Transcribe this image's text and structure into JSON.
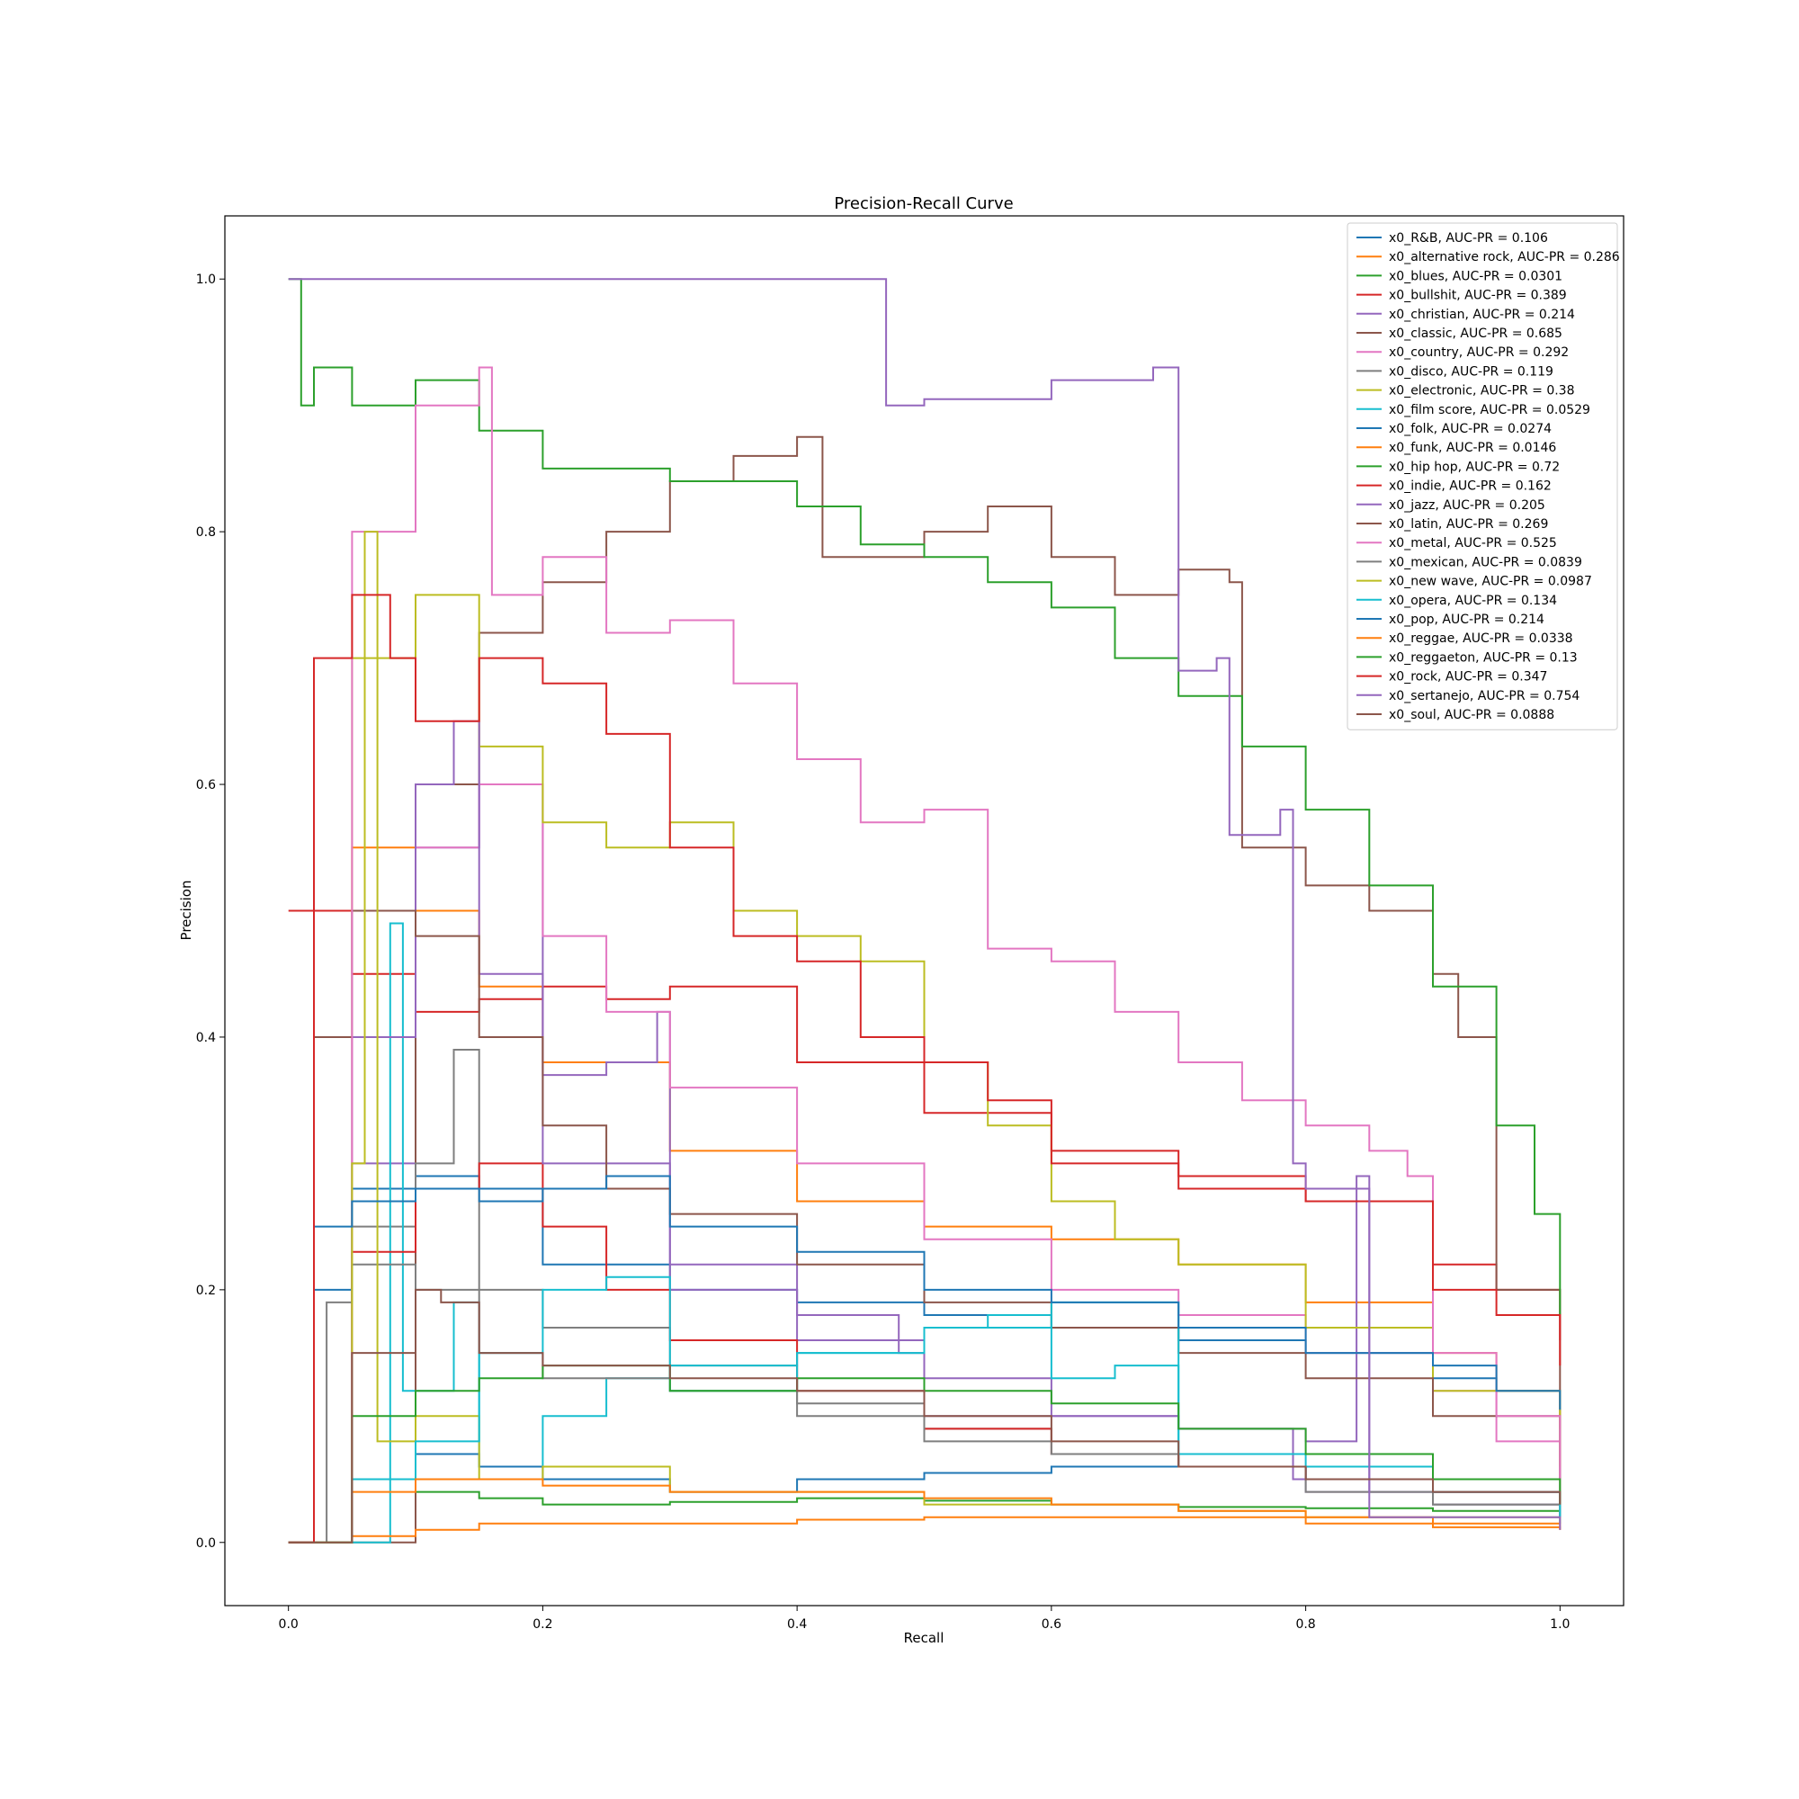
{
  "chart_data": {
    "type": "line",
    "title": "Precision-Recall Curve",
    "xlabel": "Recall",
    "ylabel": "Precision",
    "xlim": [
      -0.05,
      1.05
    ],
    "ylim": [
      -0.05,
      1.05
    ],
    "xticks": [
      0.0,
      0.2,
      0.4,
      0.6,
      0.8,
      1.0
    ],
    "xtick_labels": [
      "0.0",
      "0.2",
      "0.4",
      "0.6",
      "0.8",
      "1.0"
    ],
    "yticks": [
      0.0,
      0.2,
      0.4,
      0.6,
      0.8,
      1.0
    ],
    "ytick_labels": [
      "0.0",
      "0.2",
      "0.4",
      "0.6",
      "0.8",
      "1.0"
    ],
    "grid": false,
    "legend_position": "top-right",
    "step": true,
    "series": [
      {
        "name": "x0_R&B, AUC-PR = 0.106",
        "color": "#1f77b4",
        "x": [
          0,
          0.02,
          0.05,
          0.1,
          0.15,
          0.2,
          0.3,
          0.4,
          0.5,
          0.6,
          0.7,
          0.8,
          0.9,
          0.95,
          1.0
        ],
        "y": [
          0.0,
          0.2,
          0.28,
          0.29,
          0.28,
          0.22,
          0.2,
          0.19,
          0.18,
          0.17,
          0.16,
          0.15,
          0.13,
          0.12,
          0.106
        ]
      },
      {
        "name": "x0_alternative rock, AUC-PR = 0.286",
        "color": "#ff7f0e",
        "x": [
          0,
          0.02,
          0.05,
          0.1,
          0.15,
          0.2,
          0.3,
          0.4,
          0.5,
          0.6,
          0.7,
          0.8,
          0.9,
          0.95,
          1.0
        ],
        "y": [
          0.0,
          0.5,
          0.55,
          0.5,
          0.44,
          0.38,
          0.31,
          0.27,
          0.25,
          0.24,
          0.22,
          0.19,
          0.15,
          0.12,
          0.09
        ]
      },
      {
        "name": "x0_blues, AUC-PR = 0.0301",
        "color": "#2ca02c",
        "x": [
          0,
          0.05,
          0.1,
          0.15,
          0.2,
          0.3,
          0.4,
          0.5,
          0.6,
          0.7,
          0.8,
          0.9,
          1.0
        ],
        "y": [
          0.0,
          0.05,
          0.04,
          0.035,
          0.03,
          0.032,
          0.035,
          0.033,
          0.03,
          0.028,
          0.027,
          0.025,
          0.02
        ]
      },
      {
        "name": "x0_bullshit, AUC-PR = 0.389",
        "color": "#d62728",
        "x": [
          0,
          0.01,
          0.05,
          0.1,
          0.15,
          0.2,
          0.25,
          0.3,
          0.4,
          0.5,
          0.6,
          0.7,
          0.8,
          0.9,
          0.95,
          1.0
        ],
        "y": [
          0.5,
          0.5,
          0.45,
          0.42,
          0.43,
          0.44,
          0.43,
          0.44,
          0.38,
          0.34,
          0.31,
          0.29,
          0.27,
          0.22,
          0.2,
          0.16
        ]
      },
      {
        "name": "x0_christian, AUC-PR = 0.214",
        "color": "#9467bd",
        "x": [
          0,
          0.05,
          0.1,
          0.15,
          0.2,
          0.25,
          0.29,
          0.3,
          0.4,
          0.5,
          0.6,
          0.7,
          0.8,
          0.84,
          0.85,
          1.0
        ],
        "y": [
          0.0,
          0.3,
          0.55,
          0.6,
          0.37,
          0.38,
          0.42,
          0.2,
          0.16,
          0.13,
          0.1,
          0.09,
          0.08,
          0.28,
          0.04,
          0.03
        ]
      },
      {
        "name": "x0_classic, AUC-PR = 0.685",
        "color": "#8c564b",
        "x": [
          0,
          0.1,
          0.15,
          0.2,
          0.25,
          0.3,
          0.35,
          0.4,
          0.42,
          0.5,
          0.55,
          0.6,
          0.65,
          0.7,
          0.74,
          0.75,
          0.8,
          0.85,
          0.9,
          0.92,
          0.95,
          1.0
        ],
        "y": [
          0.0,
          0.6,
          0.72,
          0.76,
          0.8,
          0.84,
          0.86,
          0.875,
          0.78,
          0.8,
          0.82,
          0.78,
          0.75,
          0.77,
          0.76,
          0.55,
          0.52,
          0.5,
          0.45,
          0.4,
          0.2,
          0.05
        ]
      },
      {
        "name": "x0_country, AUC-PR = 0.292",
        "color": "#e377c2",
        "x": [
          0,
          0.05,
          0.1,
          0.15,
          0.2,
          0.25,
          0.3,
          0.4,
          0.5,
          0.6,
          0.7,
          0.8,
          0.9,
          0.95,
          1.0
        ],
        "y": [
          0.0,
          0.5,
          0.55,
          0.6,
          0.48,
          0.42,
          0.36,
          0.3,
          0.24,
          0.2,
          0.18,
          0.15,
          0.12,
          0.08,
          0.05
        ]
      },
      {
        "name": "x0_disco, AUC-PR = 0.119",
        "color": "#7f7f7f",
        "x": [
          0,
          0.05,
          0.1,
          0.13,
          0.15,
          0.2,
          0.3,
          0.4,
          0.5,
          0.6,
          0.7,
          0.8,
          0.9,
          1.0
        ],
        "y": [
          0.0,
          0.25,
          0.3,
          0.39,
          0.2,
          0.17,
          0.14,
          0.11,
          0.09,
          0.07,
          0.06,
          0.05,
          0.03,
          0.02
        ]
      },
      {
        "name": "x0_electronic, AUC-PR = 0.38",
        "color": "#bcbd22",
        "x": [
          0,
          0.05,
          0.1,
          0.15,
          0.2,
          0.25,
          0.3,
          0.35,
          0.4,
          0.45,
          0.5,
          0.55,
          0.6,
          0.65,
          0.7,
          0.8,
          0.9,
          1.0
        ],
        "y": [
          0.0,
          0.7,
          0.75,
          0.63,
          0.57,
          0.55,
          0.57,
          0.5,
          0.48,
          0.46,
          0.38,
          0.33,
          0.27,
          0.24,
          0.22,
          0.17,
          0.12,
          0.06
        ]
      },
      {
        "name": "x0_film score, AUC-PR = 0.0529",
        "color": "#17becf",
        "x": [
          0,
          0.08,
          0.09,
          0.13,
          0.15,
          0.2,
          0.25,
          0.3,
          0.4,
          0.5,
          0.55,
          0.6,
          0.65,
          0.7,
          0.8,
          0.9,
          1.0
        ],
        "y": [
          0.0,
          0.49,
          0.12,
          0.19,
          0.06,
          0.1,
          0.13,
          0.14,
          0.15,
          0.17,
          0.18,
          0.13,
          0.14,
          0.06,
          0.05,
          0.04,
          0.015
        ]
      },
      {
        "name": "x0_folk, AUC-PR = 0.0274",
        "color": "#1f77b4",
        "x": [
          0,
          0.05,
          0.1,
          0.15,
          0.2,
          0.3,
          0.4,
          0.5,
          0.6,
          0.7,
          0.8,
          0.9,
          1.0
        ],
        "y": [
          0.0,
          0.05,
          0.07,
          0.06,
          0.05,
          0.04,
          0.05,
          0.055,
          0.06,
          0.06,
          0.05,
          0.04,
          0.03
        ]
      },
      {
        "name": "x0_funk, AUC-PR = 0.0146",
        "color": "#ff7f0e",
        "x": [
          0,
          0.05,
          0.1,
          0.15,
          0.2,
          0.3,
          0.4,
          0.5,
          0.6,
          0.7,
          0.8,
          0.9,
          1.0
        ],
        "y": [
          0.0,
          0.005,
          0.01,
          0.015,
          0.015,
          0.015,
          0.018,
          0.02,
          0.02,
          0.02,
          0.015,
          0.012,
          0.01
        ]
      },
      {
        "name": "x0_hip hop, AUC-PR = 0.72",
        "color": "#2ca02c",
        "x": [
          0,
          0.01,
          0.02,
          0.05,
          0.1,
          0.15,
          0.2,
          0.3,
          0.4,
          0.45,
          0.5,
          0.55,
          0.6,
          0.65,
          0.7,
          0.75,
          0.8,
          0.85,
          0.9,
          0.95,
          0.98,
          1.0
        ],
        "y": [
          1.0,
          0.9,
          0.93,
          0.9,
          0.92,
          0.88,
          0.85,
          0.84,
          0.82,
          0.79,
          0.78,
          0.76,
          0.74,
          0.7,
          0.67,
          0.63,
          0.58,
          0.52,
          0.44,
          0.33,
          0.26,
          0.18
        ]
      },
      {
        "name": "x0_indie, AUC-PR = 0.162",
        "color": "#d62728",
        "x": [
          0,
          0.05,
          0.1,
          0.15,
          0.2,
          0.25,
          0.3,
          0.4,
          0.5,
          0.6,
          0.7,
          0.8,
          0.9,
          1.0
        ],
        "y": [
          0.0,
          0.23,
          0.28,
          0.3,
          0.25,
          0.2,
          0.16,
          0.12,
          0.09,
          0.07,
          0.06,
          0.05,
          0.04,
          0.03
        ]
      },
      {
        "name": "x0_jazz, AUC-PR = 0.205",
        "color": "#9467bd",
        "x": [
          0,
          0.05,
          0.1,
          0.13,
          0.15,
          0.2,
          0.3,
          0.4,
          0.48,
          0.5,
          0.6,
          0.7,
          0.79,
          0.8,
          0.9,
          1.0
        ],
        "y": [
          0.0,
          0.4,
          0.6,
          0.65,
          0.45,
          0.3,
          0.22,
          0.18,
          0.15,
          0.1,
          0.1,
          0.09,
          0.05,
          0.04,
          0.03,
          0.02
        ]
      },
      {
        "name": "x0_latin, AUC-PR = 0.269",
        "color": "#8c564b",
        "x": [
          0,
          0.02,
          0.05,
          0.1,
          0.15,
          0.2,
          0.25,
          0.3,
          0.4,
          0.5,
          0.6,
          0.7,
          0.8,
          0.9,
          1.0
        ],
        "y": [
          0.0,
          0.4,
          0.5,
          0.48,
          0.4,
          0.33,
          0.28,
          0.26,
          0.22,
          0.19,
          0.17,
          0.15,
          0.13,
          0.1,
          0.04
        ]
      },
      {
        "name": "x0_metal, AUC-PR = 0.525",
        "color": "#e377c2",
        "x": [
          0,
          0.05,
          0.1,
          0.15,
          0.16,
          0.2,
          0.25,
          0.3,
          0.35,
          0.4,
          0.45,
          0.5,
          0.55,
          0.6,
          0.65,
          0.7,
          0.75,
          0.8,
          0.85,
          0.88,
          0.9,
          0.95,
          1.0
        ],
        "y": [
          0.0,
          0.8,
          0.9,
          0.93,
          0.75,
          0.78,
          0.72,
          0.73,
          0.68,
          0.62,
          0.57,
          0.58,
          0.47,
          0.46,
          0.42,
          0.38,
          0.35,
          0.33,
          0.31,
          0.29,
          0.15,
          0.1,
          0.05
        ]
      },
      {
        "name": "x0_mexican, AUC-PR = 0.0839",
        "color": "#7f7f7f",
        "x": [
          0,
          0.03,
          0.05,
          0.1,
          0.15,
          0.2,
          0.3,
          0.4,
          0.5,
          0.6,
          0.7,
          0.8,
          0.9,
          1.0
        ],
        "y": [
          0.0,
          0.19,
          0.22,
          0.2,
          0.15,
          0.13,
          0.12,
          0.1,
          0.08,
          0.07,
          0.06,
          0.04,
          0.03,
          0.02
        ]
      },
      {
        "name": "x0_new wave, AUC-PR = 0.0987",
        "color": "#bcbd22",
        "x": [
          0,
          0.05,
          0.06,
          0.07,
          0.1,
          0.15,
          0.2,
          0.25,
          0.3,
          0.4,
          0.5,
          0.6,
          0.7,
          0.8,
          0.9,
          1.0
        ],
        "y": [
          0.0,
          0.3,
          0.8,
          0.08,
          0.1,
          0.05,
          0.06,
          0.06,
          0.04,
          0.04,
          0.03,
          0.03,
          0.025,
          0.02,
          0.02,
          0.015
        ]
      },
      {
        "name": "x0_opera, AUC-PR = 0.134",
        "color": "#17becf",
        "x": [
          0,
          0.05,
          0.1,
          0.15,
          0.2,
          0.25,
          0.3,
          0.4,
          0.5,
          0.6,
          0.7,
          0.8,
          0.9,
          1.0
        ],
        "y": [
          0.0,
          0.05,
          0.08,
          0.15,
          0.2,
          0.21,
          0.12,
          0.15,
          0.17,
          0.19,
          0.07,
          0.06,
          0.04,
          0.02
        ]
      },
      {
        "name": "x0_pop, AUC-PR = 0.214",
        "color": "#1f77b4",
        "x": [
          0,
          0.02,
          0.05,
          0.1,
          0.15,
          0.2,
          0.25,
          0.3,
          0.4,
          0.5,
          0.6,
          0.7,
          0.8,
          0.9,
          0.95,
          1.0
        ],
        "y": [
          0.0,
          0.25,
          0.27,
          0.28,
          0.27,
          0.28,
          0.29,
          0.25,
          0.23,
          0.2,
          0.19,
          0.17,
          0.15,
          0.14,
          0.12,
          0.105
        ]
      },
      {
        "name": "x0_reggae, AUC-PR = 0.0338",
        "color": "#ff7f0e",
        "x": [
          0,
          0.05,
          0.1,
          0.15,
          0.2,
          0.3,
          0.4,
          0.5,
          0.6,
          0.7,
          0.8,
          0.9,
          1.0
        ],
        "y": [
          0.0,
          0.04,
          0.05,
          0.05,
          0.045,
          0.04,
          0.04,
          0.035,
          0.03,
          0.025,
          0.02,
          0.015,
          0.01
        ]
      },
      {
        "name": "x0_reggaeton, AUC-PR = 0.13",
        "color": "#2ca02c",
        "x": [
          0,
          0.05,
          0.1,
          0.15,
          0.2,
          0.3,
          0.4,
          0.5,
          0.6,
          0.7,
          0.8,
          0.9,
          1.0
        ],
        "y": [
          0.0,
          0.1,
          0.12,
          0.13,
          0.14,
          0.12,
          0.13,
          0.12,
          0.11,
          0.09,
          0.07,
          0.05,
          0.03
        ]
      },
      {
        "name": "x0_rock, AUC-PR = 0.347",
        "color": "#d62728",
        "x": [
          0,
          0.02,
          0.05,
          0.08,
          0.1,
          0.15,
          0.2,
          0.25,
          0.3,
          0.35,
          0.4,
          0.45,
          0.5,
          0.55,
          0.6,
          0.7,
          0.8,
          0.9,
          0.95,
          1.0
        ],
        "y": [
          0.0,
          0.7,
          0.75,
          0.7,
          0.65,
          0.7,
          0.68,
          0.64,
          0.55,
          0.48,
          0.46,
          0.4,
          0.38,
          0.35,
          0.3,
          0.28,
          0.27,
          0.2,
          0.18,
          0.14
        ]
      },
      {
        "name": "x0_sertanejo, AUC-PR = 0.754",
        "color": "#9467bd",
        "x": [
          0,
          0.1,
          0.2,
          0.3,
          0.4,
          0.47,
          0.5,
          0.6,
          0.68,
          0.7,
          0.73,
          0.74,
          0.78,
          0.79,
          0.8,
          0.84,
          0.85,
          1.0
        ],
        "y": [
          1.0,
          1.0,
          1.0,
          1.0,
          1.0,
          0.9,
          0.905,
          0.92,
          0.93,
          0.69,
          0.7,
          0.56,
          0.58,
          0.3,
          0.28,
          0.29,
          0.02,
          0.01
        ]
      },
      {
        "name": "x0_soul, AUC-PR = 0.0888",
        "color": "#8c564b",
        "x": [
          0,
          0.05,
          0.1,
          0.12,
          0.15,
          0.2,
          0.3,
          0.4,
          0.5,
          0.6,
          0.7,
          0.8,
          0.9,
          1.0
        ],
        "y": [
          0.0,
          0.15,
          0.2,
          0.19,
          0.15,
          0.14,
          0.13,
          0.12,
          0.1,
          0.08,
          0.06,
          0.05,
          0.04,
          0.03
        ]
      }
    ]
  }
}
